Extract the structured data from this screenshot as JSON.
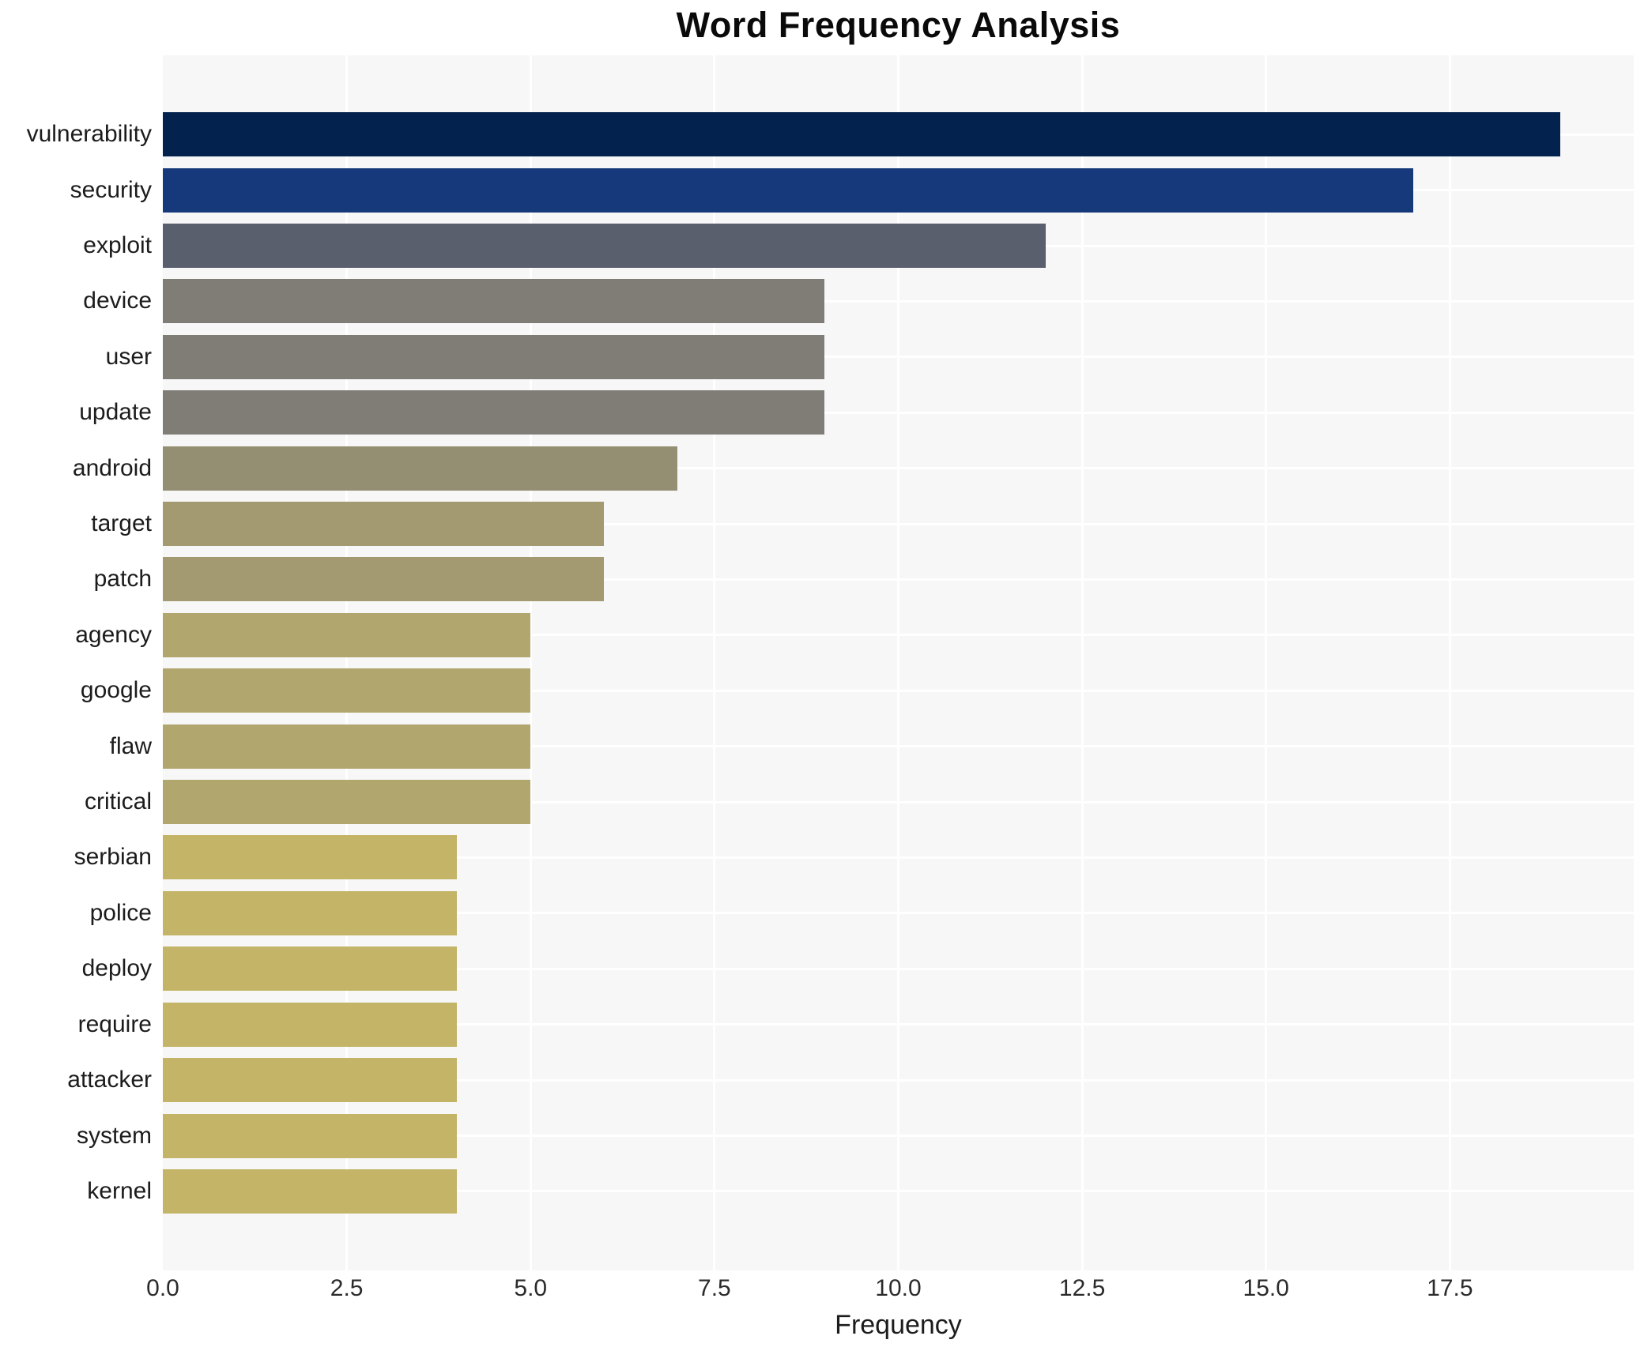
{
  "chart_data": {
    "type": "bar",
    "orientation": "horizontal",
    "title": "Word Frequency Analysis",
    "xlabel": "Frequency",
    "ylabel": "",
    "xlim": [
      0,
      20
    ],
    "grid": true,
    "legend": false,
    "plot_background": "#f7f7f8",
    "grid_color": "#ffffff",
    "xtick_labels": [
      "0.0",
      "2.5",
      "5.0",
      "7.5",
      "10.0",
      "12.5",
      "15.0",
      "17.5"
    ],
    "xtick_values": [
      0,
      2.5,
      5,
      7.5,
      10,
      12.5,
      15,
      17.5
    ],
    "gridline_values": [
      2.5,
      5,
      7.5,
      10,
      12.5,
      15,
      17.5
    ],
    "categories": [
      "vulnerability",
      "security",
      "exploit",
      "device",
      "user",
      "update",
      "android",
      "target",
      "patch",
      "agency",
      "google",
      "flaw",
      "critical",
      "serbian",
      "police",
      "deploy",
      "require",
      "attacker",
      "system",
      "kernel"
    ],
    "values": [
      19,
      17,
      12,
      9,
      9,
      9,
      7,
      6,
      6,
      5,
      5,
      5,
      5,
      4,
      4,
      4,
      4,
      4,
      4,
      4
    ],
    "bar_colors": [
      "#03234e",
      "#15397a",
      "#5a5f6e",
      "#7f7d75",
      "#7f7d75",
      "#7f7d75",
      "#948f73",
      "#a39a71",
      "#a39a71",
      "#b2a66f",
      "#b2a66f",
      "#b2a66f",
      "#b2a66f",
      "#c3b467",
      "#c3b467",
      "#c3b467",
      "#c3b467",
      "#c3b467",
      "#c3b467",
      "#c3b467"
    ]
  }
}
